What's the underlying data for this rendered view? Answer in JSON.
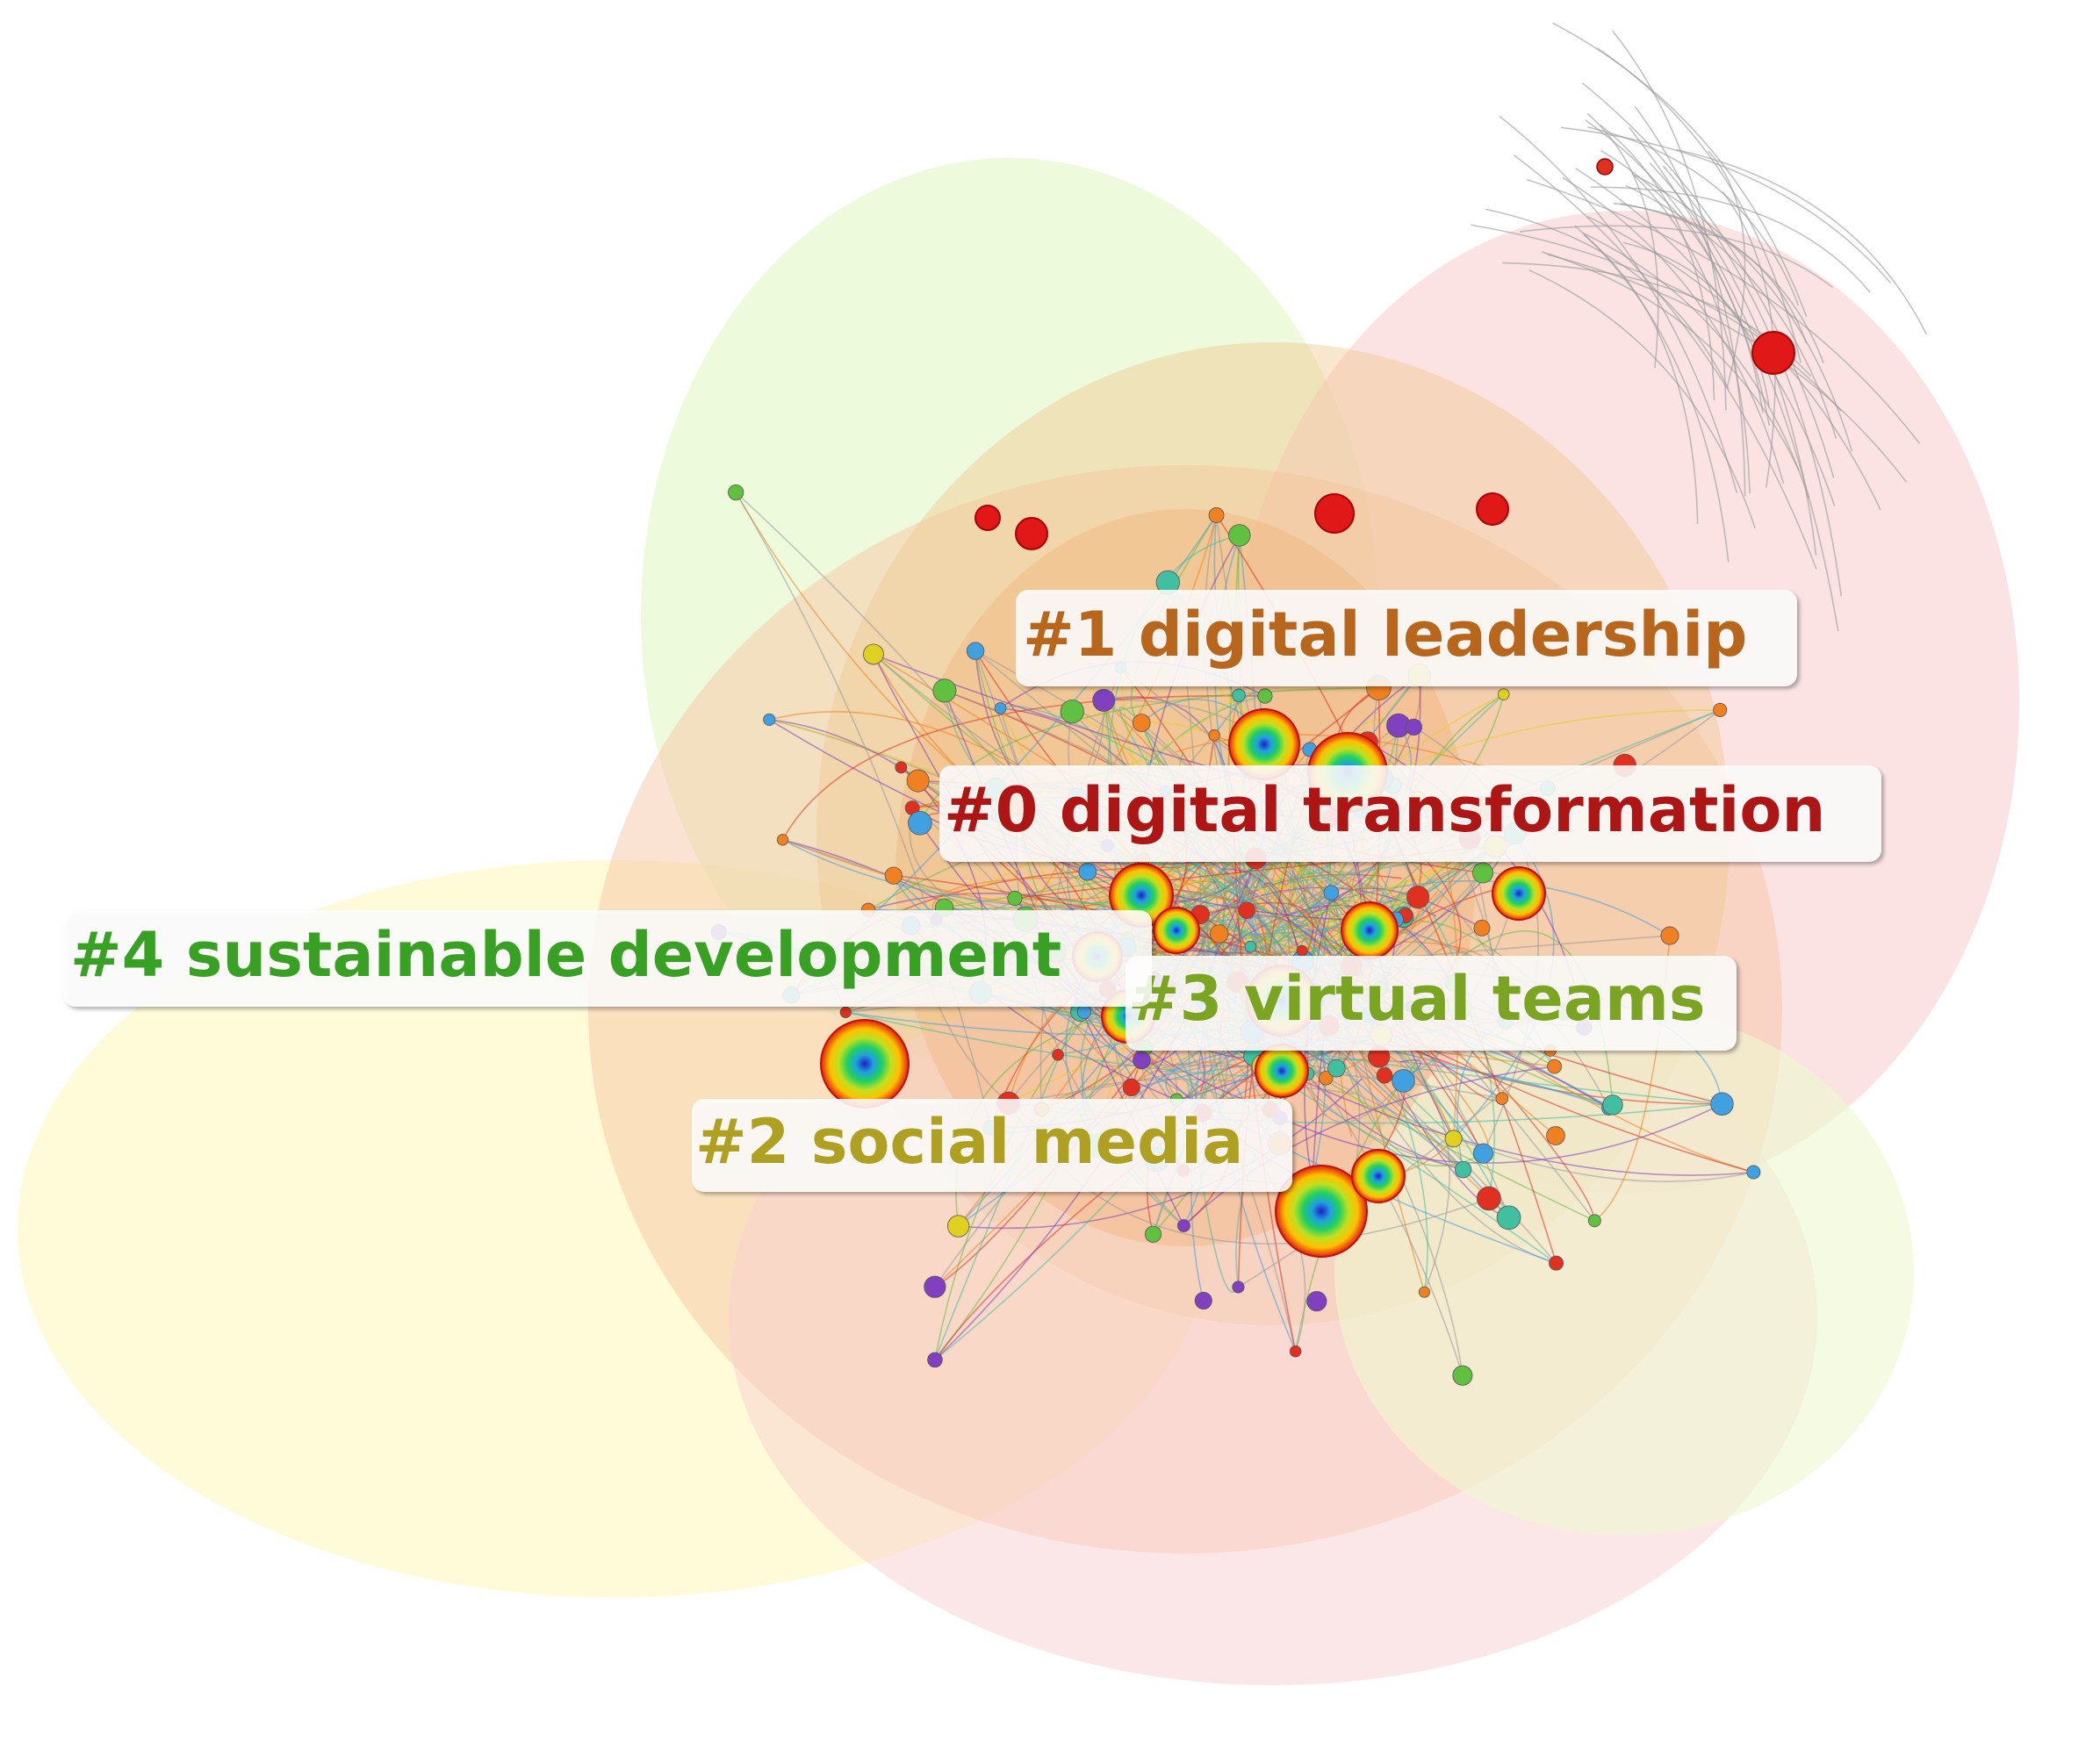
{
  "clusters": [
    {
      "label": "#0 digital transformation"
    },
    {
      "label": "#1 digital leadership"
    },
    {
      "label": "#2 social media"
    },
    {
      "label": "#3 virtual teams"
    },
    {
      "label": "#4 sustainable development"
    }
  ]
}
